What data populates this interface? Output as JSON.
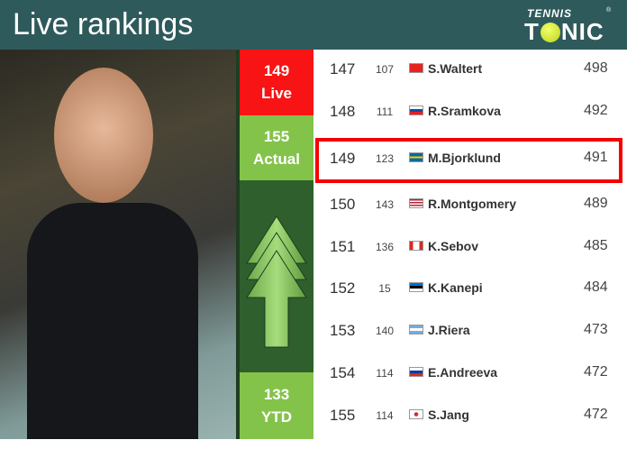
{
  "header": {
    "title": "Live rankings",
    "logo_top": "TENNIS",
    "logo_bottom": "TONIC"
  },
  "status": {
    "live_rank": "149",
    "live_label": "Live",
    "actual_rank": "155",
    "actual_label": "Actual",
    "ytd_rank": "133",
    "ytd_label": "YTD",
    "trend": "up-arrow-icon"
  },
  "colors": {
    "header": "#2f5a5c",
    "live": "#f81414",
    "actual": "#84c34a",
    "arrow_bg": "#2f5f2d",
    "highlight": "#f50000"
  },
  "rows": [
    {
      "rank": "147",
      "prev": "107",
      "flag": "switzerland",
      "name": "S.Waltert",
      "points": "498"
    },
    {
      "rank": "148",
      "prev": "111",
      "flag": "slovakia",
      "name": "R.Sramkova",
      "points": "492"
    },
    {
      "rank": "149",
      "prev": "123",
      "flag": "sweden",
      "name": "M.Bjorklund",
      "points": "491",
      "highlighted": true
    },
    {
      "rank": "150",
      "prev": "143",
      "flag": "usa",
      "name": "R.Montgomery",
      "points": "489"
    },
    {
      "rank": "151",
      "prev": "136",
      "flag": "canada",
      "name": "K.Sebov",
      "points": "485"
    },
    {
      "rank": "152",
      "prev": "15",
      "flag": "estonia",
      "name": "K.Kanepi",
      "points": "484"
    },
    {
      "rank": "153",
      "prev": "140",
      "flag": "argentina",
      "name": "J.Riera",
      "points": "473"
    },
    {
      "rank": "154",
      "prev": "114",
      "flag": "russia",
      "name": "E.Andreeva",
      "points": "472"
    },
    {
      "rank": "155",
      "prev": "114",
      "flag": "south-korea",
      "name": "S.Jang",
      "points": "472"
    }
  ]
}
